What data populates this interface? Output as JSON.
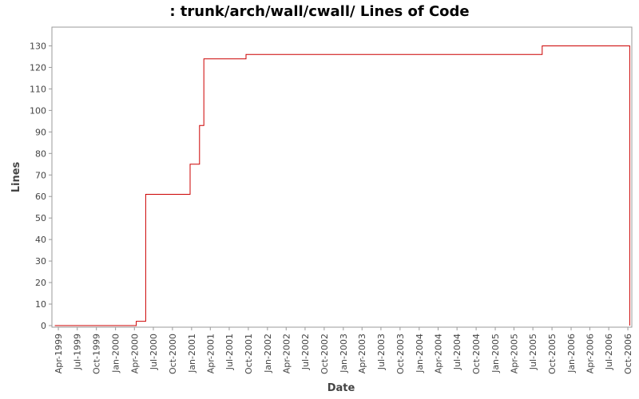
{
  "chart_data": {
    "type": "line",
    "title": ": trunk/arch/wall/cwall/ Lines of Code",
    "xlabel": "Date",
    "ylabel": "Lines",
    "xlim": [
      "1999-03-01",
      "2006-10-20"
    ],
    "ylim": [
      0,
      135
    ],
    "yticks": [
      0,
      10,
      20,
      30,
      40,
      50,
      60,
      70,
      80,
      90,
      100,
      110,
      120,
      130
    ],
    "xticks": [
      {
        "label": "Apr-1999",
        "date": "1999-04-01"
      },
      {
        "label": "Jul-1999",
        "date": "1999-07-01"
      },
      {
        "label": "Oct-1999",
        "date": "1999-10-01"
      },
      {
        "label": "Jan-2000",
        "date": "2000-01-01"
      },
      {
        "label": "Apr-2000",
        "date": "2000-04-01"
      },
      {
        "label": "Jul-2000",
        "date": "2000-07-01"
      },
      {
        "label": "Oct-2000",
        "date": "2000-10-01"
      },
      {
        "label": "Jan-2001",
        "date": "2001-01-01"
      },
      {
        "label": "Apr-2001",
        "date": "2001-04-01"
      },
      {
        "label": "Jul-2001",
        "date": "2001-07-01"
      },
      {
        "label": "Oct-2001",
        "date": "2001-10-01"
      },
      {
        "label": "Jan-2002",
        "date": "2002-01-01"
      },
      {
        "label": "Apr-2002",
        "date": "2002-04-01"
      },
      {
        "label": "Jul-2002",
        "date": "2002-07-01"
      },
      {
        "label": "Oct-2002",
        "date": "2002-10-01"
      },
      {
        "label": "Jan-2003",
        "date": "2003-01-01"
      },
      {
        "label": "Apr-2003",
        "date": "2003-04-01"
      },
      {
        "label": "Jul-2003",
        "date": "2003-07-01"
      },
      {
        "label": "Oct-2003",
        "date": "2003-10-01"
      },
      {
        "label": "Jan-2004",
        "date": "2004-01-01"
      },
      {
        "label": "Apr-2004",
        "date": "2004-04-01"
      },
      {
        "label": "Jul-2004",
        "date": "2004-07-01"
      },
      {
        "label": "Oct-2004",
        "date": "2004-10-01"
      },
      {
        "label": "Jan-2005",
        "date": "2005-01-01"
      },
      {
        "label": "Apr-2005",
        "date": "2005-04-01"
      },
      {
        "label": "Jul-2005",
        "date": "2005-07-01"
      },
      {
        "label": "Oct-2005",
        "date": "2005-10-01"
      },
      {
        "label": "Jan-2006",
        "date": "2006-01-01"
      },
      {
        "label": "Apr-2006",
        "date": "2006-04-01"
      },
      {
        "label": "Jul-2006",
        "date": "2006-07-01"
      },
      {
        "label": "Oct-2006",
        "date": "2006-10-01"
      }
    ],
    "step": true,
    "grid": false,
    "legend": "none",
    "series": [
      {
        "color": "#cc0000",
        "points": [
          {
            "x": "1999-03-15",
            "y": 0
          },
          {
            "x": "2000-04-10",
            "y": 2
          },
          {
            "x": "2000-05-25",
            "y": 61
          },
          {
            "x": "2000-12-25",
            "y": 75
          },
          {
            "x": "2001-02-08",
            "y": 93
          },
          {
            "x": "2001-03-01",
            "y": 124
          },
          {
            "x": "2001-09-20",
            "y": 126
          },
          {
            "x": "2005-08-15",
            "y": 130
          },
          {
            "x": "2006-10-10",
            "y": 0
          }
        ]
      }
    ]
  }
}
